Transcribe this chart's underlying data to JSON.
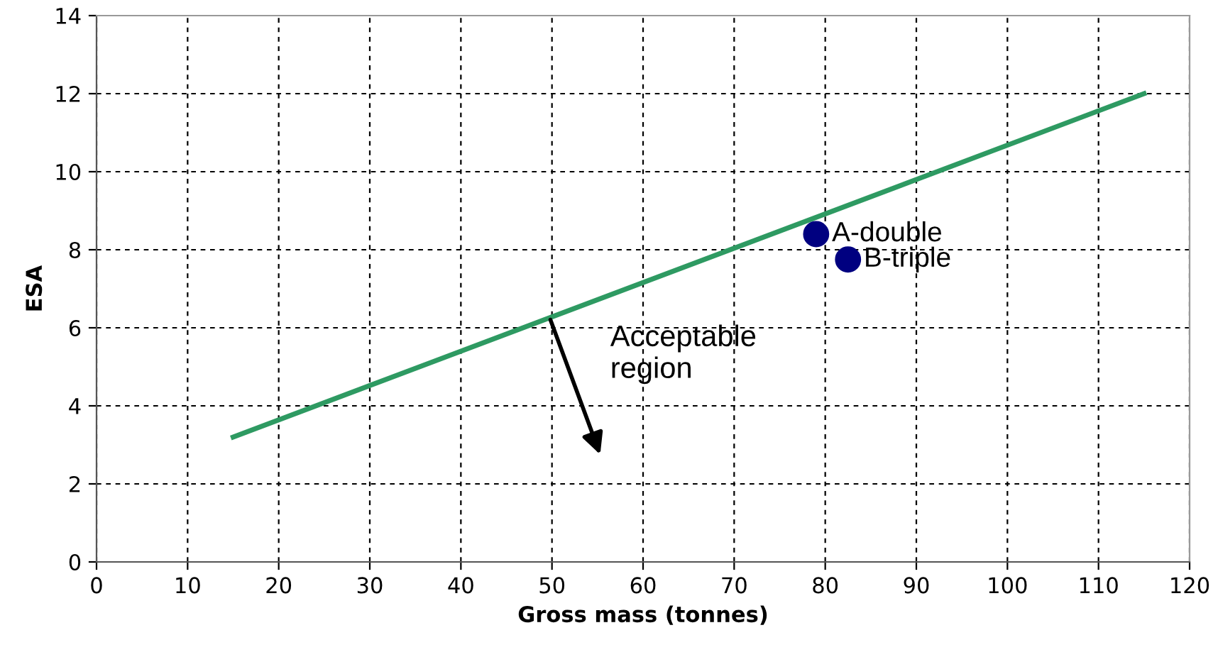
{
  "chart_data": {
    "type": "scatter",
    "xlabel": "Gross mass (tonnes)",
    "ylabel": "ESA",
    "series": [
      {
        "type": "line",
        "color": "#2e9a62",
        "x": [
          15,
          115
        ],
        "values": [
          3.2,
          12
        ],
        "marker": "none"
      },
      {
        "name": "A-double",
        "color": "#000080",
        "x": [
          79
        ],
        "values": [
          8.4
        ],
        "marker": "circle"
      },
      {
        "name": "B-triple",
        "color": "#000080",
        "x": [
          82.5
        ],
        "values": [
          7.75
        ],
        "marker": "circle"
      }
    ],
    "annotations": [
      "Acceptable\nregion"
    ],
    "xlim": [
      0,
      120
    ],
    "xticks": [
      0,
      10,
      20,
      30,
      40,
      50,
      60,
      70,
      80,
      90,
      100,
      110,
      120
    ],
    "ylim": [
      0,
      14
    ],
    "yticks": [
      0,
      2,
      4,
      6,
      8,
      10,
      12,
      14
    ],
    "grid": true,
    "legend": false
  }
}
